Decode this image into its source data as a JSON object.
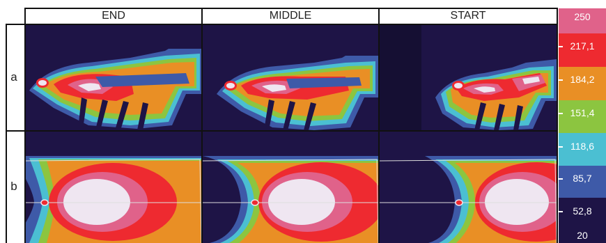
{
  "columns": [
    "END",
    "MIDDLE",
    "START"
  ],
  "rows": [
    "a",
    "b"
  ],
  "colorbar": {
    "labels": [
      "250",
      "217,1",
      "184,2",
      "151,4",
      "118,6",
      "85,7",
      "52,8",
      "20"
    ],
    "colors": {
      "pink": "#e0628a",
      "red": "#ee2a30",
      "orange": "#e98f25",
      "green": "#8cc540",
      "cyan": "#4bbfd2",
      "blue": "#3e5aa8",
      "navy": "#1e1446",
      "white": "#efe6f1"
    }
  }
}
